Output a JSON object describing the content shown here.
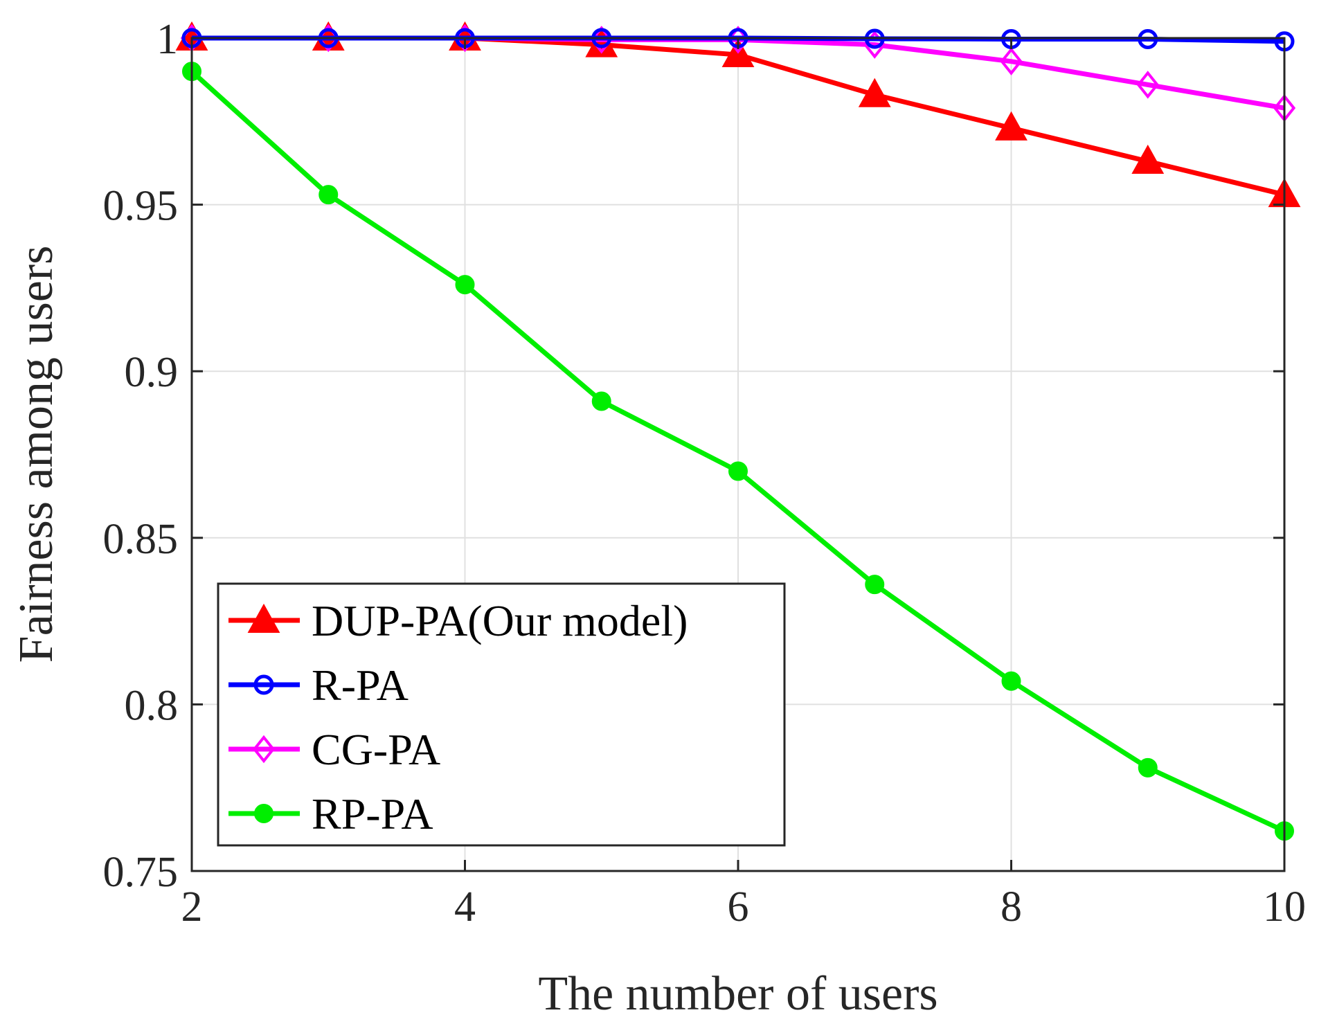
{
  "chart_data": {
    "type": "line",
    "title": "",
    "xlabel": "The number of users",
    "ylabel": "Fairness among users",
    "x": [
      2,
      3,
      4,
      5,
      6,
      7,
      8,
      9,
      10
    ],
    "xlim": [
      2,
      10
    ],
    "ylim": [
      0.75,
      1
    ],
    "xticks": [
      2,
      4,
      6,
      8,
      10
    ],
    "yticks": [
      0.75,
      0.8,
      0.85,
      0.9,
      0.95,
      1
    ],
    "xtick_labels": [
      "2",
      "4",
      "6",
      "8",
      "10"
    ],
    "ytick_labels": [
      "0.75",
      "0.8",
      "0.85",
      "0.9",
      "0.95",
      "1"
    ],
    "grid": true,
    "legend_position": "bottom-left",
    "series": [
      {
        "name": "DUP-PA(Our model)",
        "color": "#ff0000",
        "marker": "triangle",
        "values": [
          1.0,
          1.0,
          1.0,
          0.998,
          0.995,
          0.983,
          0.973,
          0.963,
          0.953
        ]
      },
      {
        "name": "R-PA",
        "color": "#0000ff",
        "marker": "circle",
        "values": [
          1.0,
          1.0,
          1.0,
          1.0,
          1.0,
          0.9998,
          0.9997,
          0.9997,
          0.999
        ]
      },
      {
        "name": "CG-PA",
        "color": "#ff00ff",
        "marker": "diamond",
        "values": [
          1.0,
          1.0,
          1.0,
          0.9995,
          0.9995,
          0.998,
          0.993,
          0.986,
          0.979
        ]
      },
      {
        "name": "RP-PA",
        "color": "#00ee00",
        "marker": "dot",
        "values": [
          0.99,
          0.953,
          0.926,
          0.891,
          0.87,
          0.836,
          0.807,
          0.781,
          0.762
        ]
      }
    ]
  }
}
